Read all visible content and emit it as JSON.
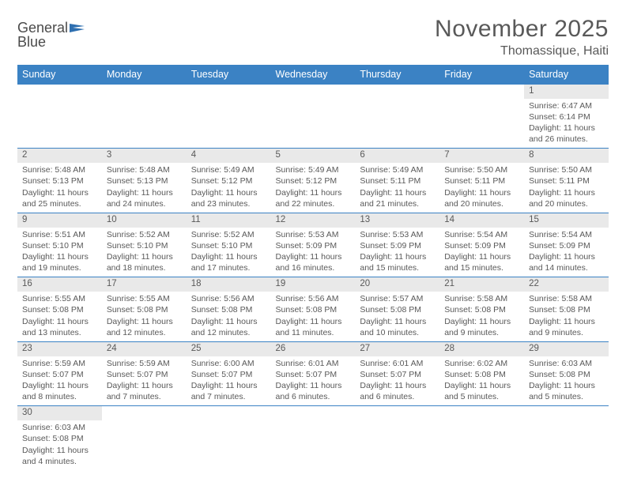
{
  "brand": {
    "part1": "General",
    "part2": "Blue"
  },
  "title": "November 2025",
  "subtitle": "Thomassique, Haiti",
  "colors": {
    "header_bg": "#3b82c4",
    "header_text": "#ffffff",
    "daynum_bg": "#e9e9e9",
    "text": "#595959",
    "rule": "#3b82c4",
    "logo_flag": "#2e6fb0"
  },
  "dayNames": [
    "Sunday",
    "Monday",
    "Tuesday",
    "Wednesday",
    "Thursday",
    "Friday",
    "Saturday"
  ],
  "labels": {
    "sunrise": "Sunrise:",
    "sunset": "Sunset:",
    "daylight": "Daylight:"
  },
  "weeks": [
    [
      null,
      null,
      null,
      null,
      null,
      null,
      {
        "n": 1,
        "sunrise": "6:47 AM",
        "sunset": "6:14 PM",
        "daylight": "11 hours and 26 minutes."
      }
    ],
    [
      {
        "n": 2,
        "sunrise": "5:48 AM",
        "sunset": "5:13 PM",
        "daylight": "11 hours and 25 minutes."
      },
      {
        "n": 3,
        "sunrise": "5:48 AM",
        "sunset": "5:13 PM",
        "daylight": "11 hours and 24 minutes."
      },
      {
        "n": 4,
        "sunrise": "5:49 AM",
        "sunset": "5:12 PM",
        "daylight": "11 hours and 23 minutes."
      },
      {
        "n": 5,
        "sunrise": "5:49 AM",
        "sunset": "5:12 PM",
        "daylight": "11 hours and 22 minutes."
      },
      {
        "n": 6,
        "sunrise": "5:49 AM",
        "sunset": "5:11 PM",
        "daylight": "11 hours and 21 minutes."
      },
      {
        "n": 7,
        "sunrise": "5:50 AM",
        "sunset": "5:11 PM",
        "daylight": "11 hours and 20 minutes."
      },
      {
        "n": 8,
        "sunrise": "5:50 AM",
        "sunset": "5:11 PM",
        "daylight": "11 hours and 20 minutes."
      }
    ],
    [
      {
        "n": 9,
        "sunrise": "5:51 AM",
        "sunset": "5:10 PM",
        "daylight": "11 hours and 19 minutes."
      },
      {
        "n": 10,
        "sunrise": "5:52 AM",
        "sunset": "5:10 PM",
        "daylight": "11 hours and 18 minutes."
      },
      {
        "n": 11,
        "sunrise": "5:52 AM",
        "sunset": "5:10 PM",
        "daylight": "11 hours and 17 minutes."
      },
      {
        "n": 12,
        "sunrise": "5:53 AM",
        "sunset": "5:09 PM",
        "daylight": "11 hours and 16 minutes."
      },
      {
        "n": 13,
        "sunrise": "5:53 AM",
        "sunset": "5:09 PM",
        "daylight": "11 hours and 15 minutes."
      },
      {
        "n": 14,
        "sunrise": "5:54 AM",
        "sunset": "5:09 PM",
        "daylight": "11 hours and 15 minutes."
      },
      {
        "n": 15,
        "sunrise": "5:54 AM",
        "sunset": "5:09 PM",
        "daylight": "11 hours and 14 minutes."
      }
    ],
    [
      {
        "n": 16,
        "sunrise": "5:55 AM",
        "sunset": "5:08 PM",
        "daylight": "11 hours and 13 minutes."
      },
      {
        "n": 17,
        "sunrise": "5:55 AM",
        "sunset": "5:08 PM",
        "daylight": "11 hours and 12 minutes."
      },
      {
        "n": 18,
        "sunrise": "5:56 AM",
        "sunset": "5:08 PM",
        "daylight": "11 hours and 12 minutes."
      },
      {
        "n": 19,
        "sunrise": "5:56 AM",
        "sunset": "5:08 PM",
        "daylight": "11 hours and 11 minutes."
      },
      {
        "n": 20,
        "sunrise": "5:57 AM",
        "sunset": "5:08 PM",
        "daylight": "11 hours and 10 minutes."
      },
      {
        "n": 21,
        "sunrise": "5:58 AM",
        "sunset": "5:08 PM",
        "daylight": "11 hours and 9 minutes."
      },
      {
        "n": 22,
        "sunrise": "5:58 AM",
        "sunset": "5:08 PM",
        "daylight": "11 hours and 9 minutes."
      }
    ],
    [
      {
        "n": 23,
        "sunrise": "5:59 AM",
        "sunset": "5:07 PM",
        "daylight": "11 hours and 8 minutes."
      },
      {
        "n": 24,
        "sunrise": "5:59 AM",
        "sunset": "5:07 PM",
        "daylight": "11 hours and 7 minutes."
      },
      {
        "n": 25,
        "sunrise": "6:00 AM",
        "sunset": "5:07 PM",
        "daylight": "11 hours and 7 minutes."
      },
      {
        "n": 26,
        "sunrise": "6:01 AM",
        "sunset": "5:07 PM",
        "daylight": "11 hours and 6 minutes."
      },
      {
        "n": 27,
        "sunrise": "6:01 AM",
        "sunset": "5:07 PM",
        "daylight": "11 hours and 6 minutes."
      },
      {
        "n": 28,
        "sunrise": "6:02 AM",
        "sunset": "5:08 PM",
        "daylight": "11 hours and 5 minutes."
      },
      {
        "n": 29,
        "sunrise": "6:03 AM",
        "sunset": "5:08 PM",
        "daylight": "11 hours and 5 minutes."
      }
    ],
    [
      {
        "n": 30,
        "sunrise": "6:03 AM",
        "sunset": "5:08 PM",
        "daylight": "11 hours and 4 minutes."
      },
      null,
      null,
      null,
      null,
      null,
      null
    ]
  ]
}
